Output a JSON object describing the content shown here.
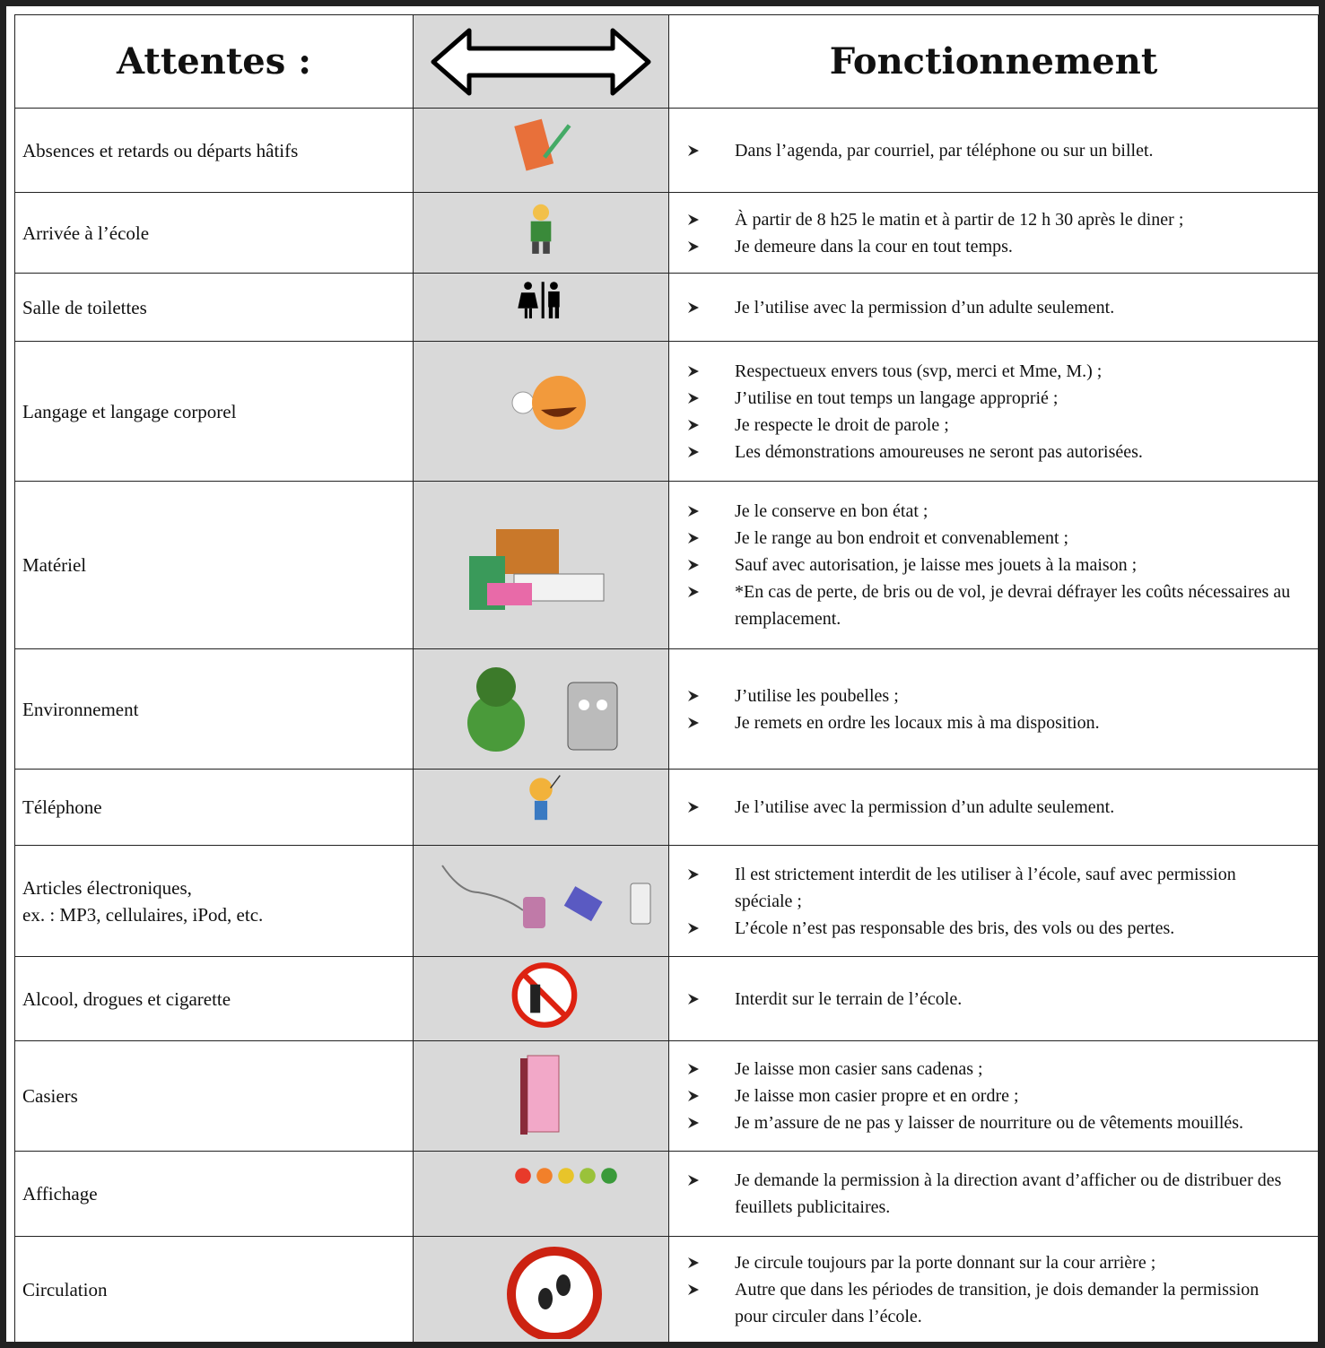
{
  "header": {
    "left": "Attentes :",
    "right": "Fonctionnement"
  },
  "rows": [
    {
      "label": [
        "Absences et retards ou départs hâtifs"
      ],
      "items": [
        "Dans l’agenda, par courriel, par téléphone ou sur un billet."
      ]
    },
    {
      "label": [
        "Arrivée à l’école"
      ],
      "items": [
        "À partir de 8 h25 le matin et à partir de 12 h 30 après le diner ;",
        "Je demeure dans la cour en tout temps."
      ]
    },
    {
      "label": [
        "Salle de toilettes"
      ],
      "items": [
        "Je l’utilise avec la permission d’un adulte seulement."
      ]
    },
    {
      "label": [
        "Langage et langage corporel"
      ],
      "items": [
        "Respectueux envers tous (svp, merci et Mme, M.) ;",
        "J’utilise en tout temps un langage approprié ;",
        "Je respecte le droit de parole ;",
        "Les démonstrations amoureuses ne seront pas autorisées."
      ]
    },
    {
      "label": [
        "Matériel"
      ],
      "items": [
        "Je le conserve en bon état ;",
        "Je le range au bon endroit et convenablement ;",
        "Sauf avec autorisation, je laisse mes jouets à la maison ;",
        "*En cas de perte, de bris ou de vol, je devrai défrayer les coûts nécessaires au remplacement."
      ]
    },
    {
      "label": [
        "Environnement"
      ],
      "items": [
        "J’utilise les poubelles ;",
        "Je remets en ordre les locaux mis à ma disposition."
      ]
    },
    {
      "label": [
        "Téléphone"
      ],
      "items": [
        "Je l’utilise avec la permission d’un adulte seulement."
      ]
    },
    {
      "label": [
        "Articles électroniques,",
        "ex. : MP3, cellulaires, iPod, etc."
      ],
      "items": [
        "Il est strictement interdit de les utiliser à l’école, sauf avec permission spéciale ;",
        "L’école n’est pas responsable des bris, des vols ou des pertes."
      ]
    },
    {
      "label": [
        "Alcool, drogues et cigarette"
      ],
      "items": [
        "Interdit sur le terrain de l’école."
      ]
    },
    {
      "label": [
        "Casiers"
      ],
      "items": [
        "Je laisse mon casier sans cadenas ;",
        "Je laisse mon casier propre et en ordre ;",
        "Je m’assure de ne pas y laisser de nourriture ou de vêtements mouillés."
      ]
    },
    {
      "label": [
        "Affichage"
      ],
      "items": [
        "Je demande la permission à la direction avant d’afficher ou de distribuer des feuillets publicitaires."
      ]
    },
    {
      "label": [
        "Circulation"
      ],
      "items": [
        "Je circule toujours par la porte donnant sur la cour arrière ;",
        "Autre que dans les périodes de transition, je dois demander la permission pour circuler dans l’école."
      ]
    }
  ]
}
